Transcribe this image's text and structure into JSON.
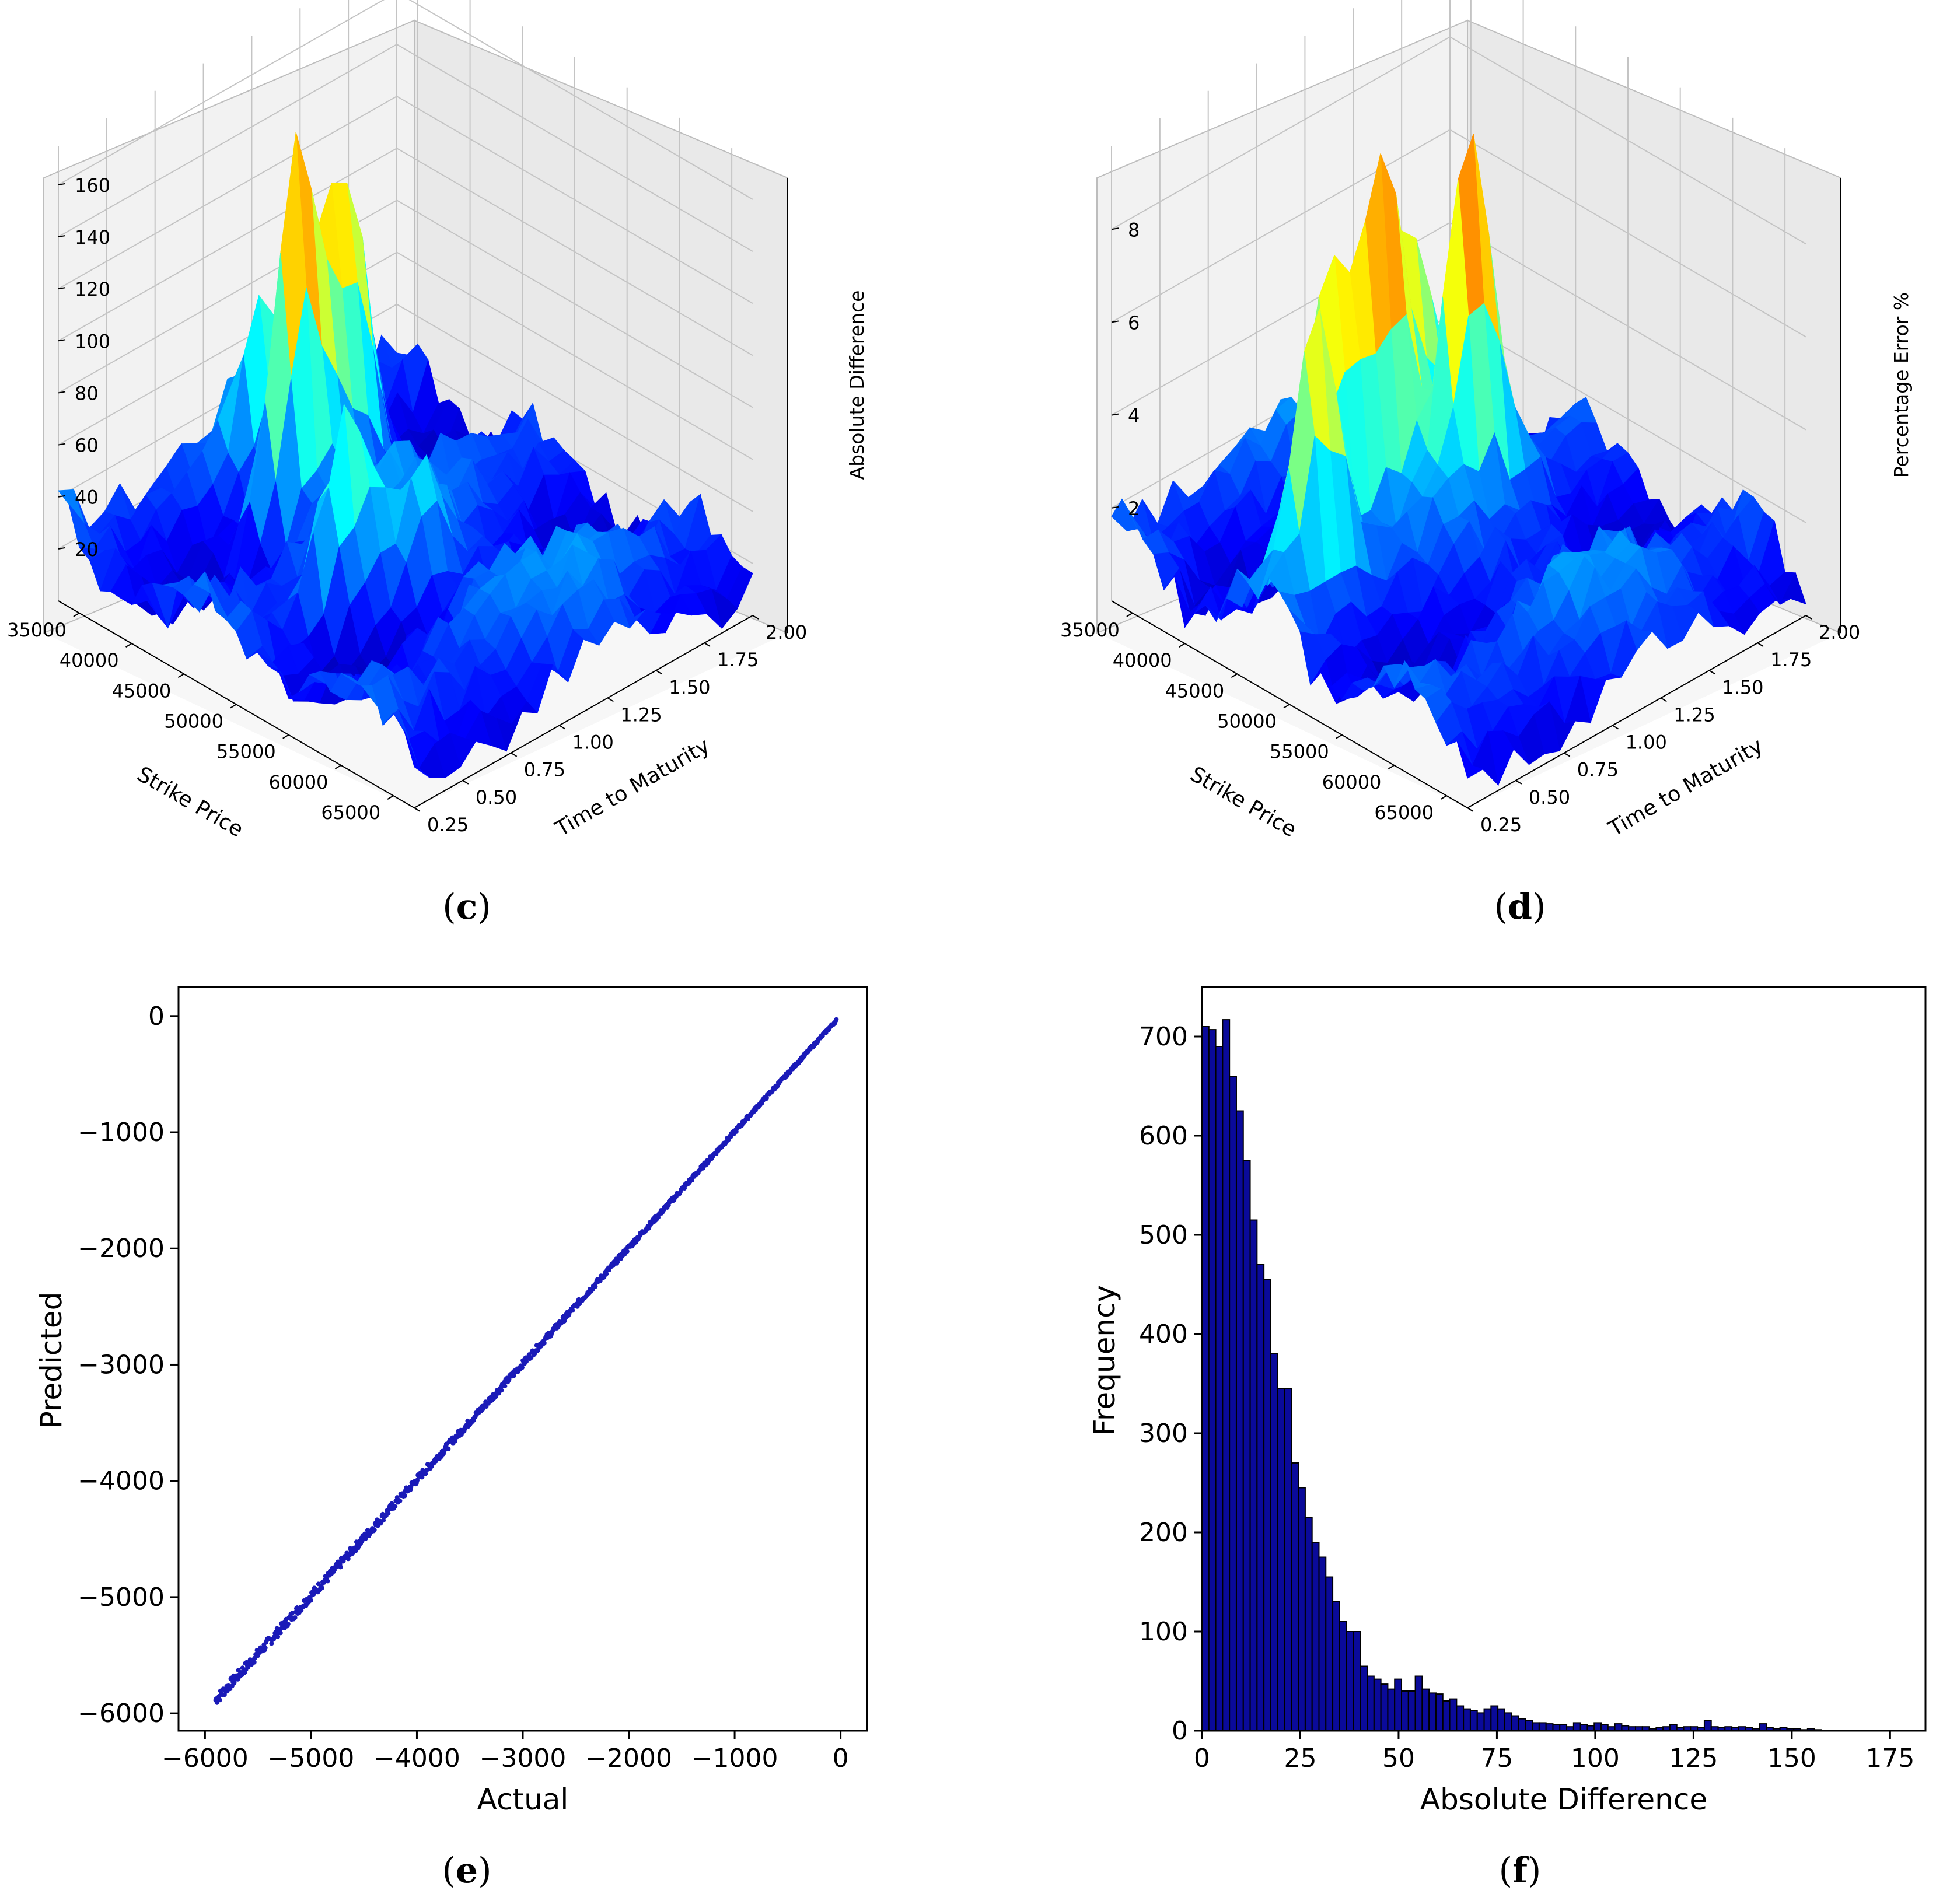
{
  "colors": {
    "surface_low": "#00008b",
    "surface_mid": "#00bfff",
    "surface_high": "#b00000",
    "scatter": "#1a1ab8",
    "hist_fill": "#0a0a9a",
    "hist_edge": "#000000",
    "grid": "#cfcfcf"
  },
  "chart_data": [
    {
      "id": "c",
      "caption_letter": "c",
      "type": "surface3d",
      "xlabel": "Strike Price",
      "ylabel": "Time to Maturity",
      "zlabel": "Absolute Difference",
      "xticks": [
        "35000",
        "40000",
        "45000",
        "50000",
        "55000",
        "60000",
        "65000"
      ],
      "yticks": [
        "0.25",
        "0.50",
        "0.75",
        "1.00",
        "1.25",
        "1.50",
        "1.75",
        "2.00"
      ],
      "zticks": [
        "20",
        "40",
        "60",
        "80",
        "100",
        "120",
        "140",
        "160"
      ],
      "xlim": [
        33000,
        67000
      ],
      "ylim": [
        0.25,
        2.0
      ],
      "zlim": [
        0,
        175
      ],
      "peaks": [
        {
          "strike": 41000,
          "ttm": 1.05,
          "height": 160
        },
        {
          "strike": 40000,
          "ttm": 1.35,
          "height": 135
        },
        {
          "strike": 37500,
          "ttm": 1.45,
          "height": 118
        },
        {
          "strike": 36000,
          "ttm": 1.15,
          "height": 72
        },
        {
          "strike": 50000,
          "ttm": 0.8,
          "height": 85
        },
        {
          "strike": 52000,
          "ttm": 1.1,
          "height": 60
        }
      ]
    },
    {
      "id": "d",
      "caption_letter": "d",
      "type": "surface3d",
      "xlabel": "Strike Price",
      "ylabel": "Time to Maturity",
      "zlabel": "Percentage Error %",
      "xticks": [
        "35000",
        "40000",
        "45000",
        "50000",
        "55000",
        "60000",
        "65000"
      ],
      "yticks": [
        "0.25",
        "0.50",
        "0.75",
        "1.00",
        "1.25",
        "1.50",
        "1.75",
        "2.00"
      ],
      "zticks": [
        "2",
        "4",
        "6",
        "8"
      ],
      "xlim": [
        33000,
        67000
      ],
      "ylim": [
        0.25,
        2.0
      ],
      "zlim": [
        0,
        9.8
      ],
      "peaks": [
        {
          "strike": 47000,
          "ttm": 0.55,
          "height": 7.5
        },
        {
          "strike": 44000,
          "ttm": 0.75,
          "height": 7.2
        },
        {
          "strike": 44000,
          "ttm": 1.05,
          "height": 7.8
        },
        {
          "strike": 47000,
          "ttm": 1.35,
          "height": 8.0
        },
        {
          "strike": 42500,
          "ttm": 1.3,
          "height": 6.4
        }
      ]
    },
    {
      "id": "e",
      "caption_letter": "e",
      "type": "scatter",
      "xlabel": "Actual",
      "ylabel": "Predicted",
      "xticks": [
        -6000,
        -5000,
        -4000,
        -3000,
        -2000,
        -1000,
        0
      ],
      "yticks": [
        0,
        -1000,
        -2000,
        -3000,
        -4000,
        -5000,
        -6000
      ],
      "xlim": [
        -6250,
        250
      ],
      "ylim": [
        -6150,
        250
      ],
      "x_range": [
        -5900,
        -40
      ],
      "trend": "predicted ≈ actual"
    },
    {
      "id": "f",
      "caption_letter": "f",
      "type": "bar",
      "xlabel": "Absolute Difference",
      "ylabel": "Frequency",
      "xticks": [
        0,
        25,
        50,
        75,
        100,
        125,
        150,
        175
      ],
      "yticks": [
        0,
        100,
        200,
        300,
        400,
        500,
        600,
        700
      ],
      "xlim": [
        0,
        184
      ],
      "ylim": [
        0,
        750
      ],
      "bin_start": 0,
      "bin_width": 1.75,
      "values": [
        710,
        707,
        690,
        717,
        660,
        625,
        575,
        515,
        470,
        455,
        380,
        345,
        345,
        270,
        245,
        215,
        190,
        175,
        155,
        130,
        110,
        100,
        100,
        65,
        55,
        52,
        47,
        42,
        52,
        40,
        40,
        55,
        42,
        38,
        37,
        30,
        32,
        25,
        22,
        20,
        18,
        22,
        25,
        22,
        18,
        15,
        12,
        10,
        8,
        8,
        7,
        6,
        6,
        4,
        8,
        6,
        5,
        8,
        6,
        4,
        7,
        5,
        4,
        4,
        4,
        2,
        3,
        4,
        6,
        3,
        4,
        4,
        3,
        10,
        4,
        3,
        4,
        3,
        4,
        3,
        2,
        7,
        3,
        2,
        3,
        2,
        2,
        1,
        2,
        1
      ]
    }
  ]
}
